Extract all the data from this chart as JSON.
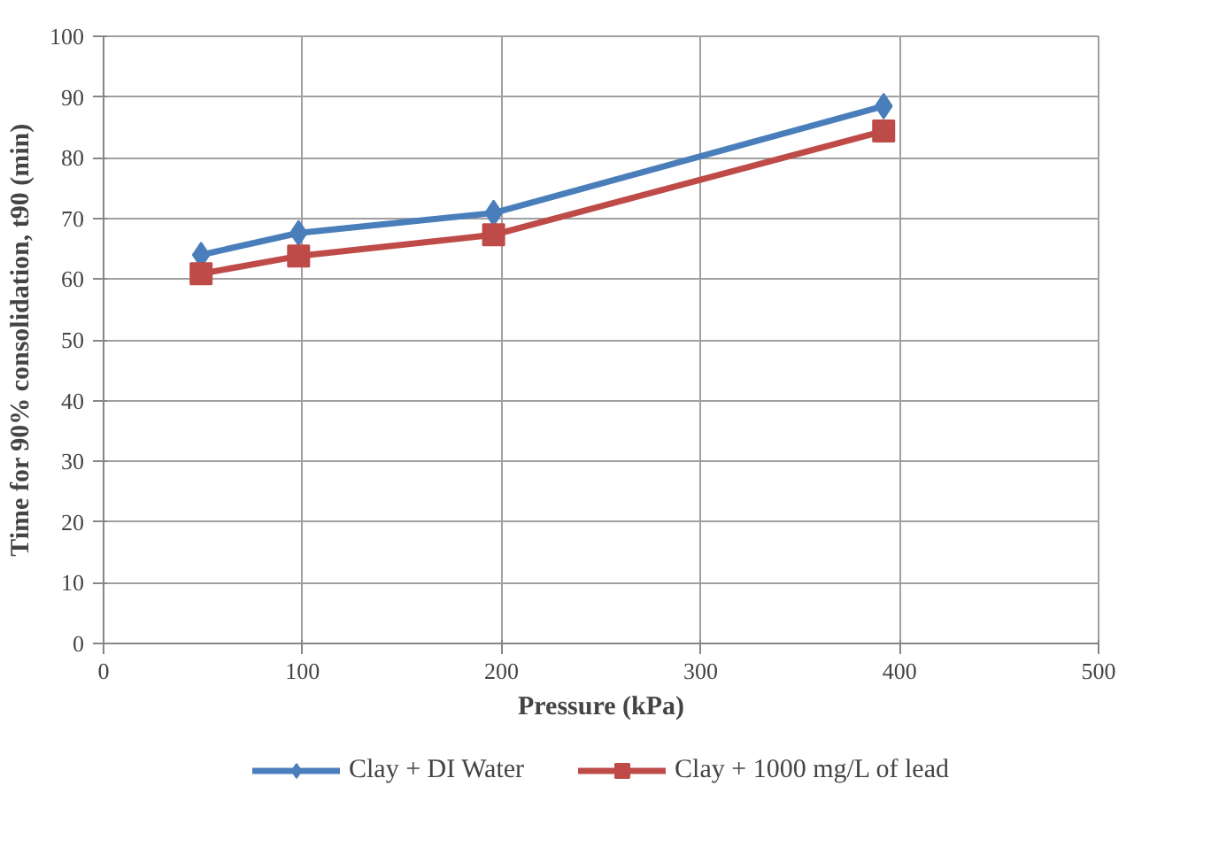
{
  "chart_data": {
    "type": "line",
    "xlabel": "Pressure (kPa)",
    "ylabel": "Time for 90% consolidation, t90 (min)",
    "x": [
      49,
      98,
      196,
      392
    ],
    "series": [
      {
        "name": "Clay + DI Water",
        "color": "#4a7ebb",
        "marker": "diamond",
        "values": [
          64,
          67.6,
          70.9,
          88.5
        ]
      },
      {
        "name": "Clay + 1000 mg/L of lead",
        "color": "#be4b48",
        "marker": "square",
        "values": [
          60.9,
          63.8,
          67.3,
          84.4
        ]
      }
    ],
    "xlim": [
      0,
      500
    ],
    "xticks": [
      0,
      100,
      200,
      300,
      400,
      500
    ],
    "ylim": [
      0,
      100
    ],
    "yticks": [
      0,
      10,
      20,
      30,
      40,
      50,
      60,
      70,
      80,
      90,
      100
    ],
    "grid": true,
    "legend": "bottom",
    "line_style": "solid"
  }
}
